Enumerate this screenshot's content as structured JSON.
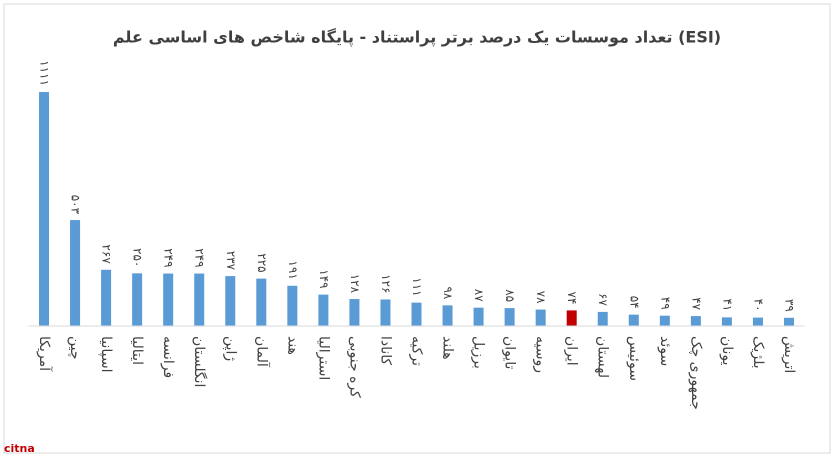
{
  "chart_data": {
    "type": "bar",
    "title": "تعداد موسسات یک درصد برتر پراستناد - پایگاه شاخص های اساسی علم (ESI)",
    "categories": [
      "آمریکا",
      "چین",
      "اسپانیا",
      "ایتالیا",
      "فرانسه",
      "انگلستان",
      "ژاپن",
      "آلمان",
      "هند",
      "استرالیا",
      "کره جنوبی",
      "کانادا",
      "ترکیه",
      "هلند",
      "برزیل",
      "تایوان",
      "روسیه",
      "ایران",
      "لهستان",
      "سوئیس",
      "سوئد",
      "جمهوری چک",
      "یونان",
      "بلژیک",
      "اتریش"
    ],
    "values": [
      1111,
      503,
      267,
      250,
      249,
      249,
      237,
      225,
      191,
      149,
      128,
      126,
      111,
      98,
      87,
      85,
      78,
      74,
      67,
      54,
      49,
      47,
      41,
      40,
      39
    ],
    "value_labels": [
      "۱۱۱۱",
      "۵۰۳",
      "۲۶۷",
      "۲۵۰",
      "۲۴۹",
      "۲۴۹",
      "۲۳۷",
      "۲۲۵",
      "۱۹۱",
      "۱۴۹",
      "۱۲۸",
      "۱۲۶",
      "۱۱۱",
      "۹۸",
      "۸۷",
      "۸۵",
      "۷۸",
      "۷۴",
      "۶۷",
      "۵۴",
      "۴۹",
      "۴۷",
      "۴۱",
      "۴۰",
      "۳۹"
    ],
    "colors": [
      "#5b9bd5",
      "#5b9bd5",
      "#5b9bd5",
      "#5b9bd5",
      "#5b9bd5",
      "#5b9bd5",
      "#5b9bd5",
      "#5b9bd5",
      "#5b9bd5",
      "#5b9bd5",
      "#5b9bd5",
      "#5b9bd5",
      "#5b9bd5",
      "#5b9bd5",
      "#5b9bd5",
      "#5b9bd5",
      "#5b9bd5",
      "#c00000",
      "#5b9bd5",
      "#5b9bd5",
      "#5b9bd5",
      "#5b9bd5",
      "#5b9bd5",
      "#5b9bd5",
      "#5b9bd5"
    ],
    "ylim": [
      0,
      1200
    ],
    "watermark": "citna"
  }
}
